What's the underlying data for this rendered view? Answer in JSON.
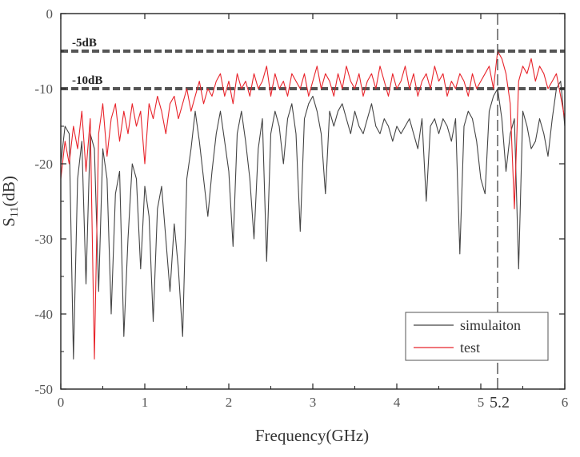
{
  "chart_data": {
    "type": "line",
    "xlabel": "Frequency(GHz)",
    "ylabel_main": "S",
    "ylabel_sub": "11",
    "ylabel_unit": "(dB)",
    "xlim": [
      0,
      6
    ],
    "ylim": [
      -50,
      0
    ],
    "x_ticks": [
      0,
      1,
      2,
      3,
      4,
      5,
      6
    ],
    "x_tick_labels": [
      "0",
      "1",
      "2",
      "3",
      "4",
      "5",
      "6"
    ],
    "y_ticks": [
      0,
      -10,
      -20,
      -30,
      -40,
      -50
    ],
    "y_tick_labels": [
      "0",
      "-10",
      "-20",
      "-30",
      "-40",
      "-50"
    ],
    "reference_lines": [
      {
        "value": -5,
        "label": "-5dB"
      },
      {
        "value": -10,
        "label": "-10dB"
      }
    ],
    "marker": {
      "x": 5.2,
      "label": "5.2"
    },
    "legend_position": "bottom-right",
    "colors": {
      "simulation": "#444444",
      "test": "#e8242b",
      "reference": "#555555",
      "axis": "#222222"
    },
    "series": [
      {
        "name": "simulaiton",
        "x": [
          0,
          0.05,
          0.1,
          0.15,
          0.2,
          0.25,
          0.3,
          0.35,
          0.4,
          0.45,
          0.5,
          0.55,
          0.6,
          0.65,
          0.7,
          0.75,
          0.8,
          0.85,
          0.9,
          0.95,
          1.0,
          1.05,
          1.1,
          1.15,
          1.2,
          1.25,
          1.3,
          1.35,
          1.4,
          1.45,
          1.5,
          1.55,
          1.6,
          1.65,
          1.7,
          1.75,
          1.8,
          1.85,
          1.9,
          1.95,
          2.0,
          2.05,
          2.1,
          2.15,
          2.2,
          2.25,
          2.3,
          2.35,
          2.4,
          2.45,
          2.5,
          2.55,
          2.6,
          2.65,
          2.7,
          2.75,
          2.8,
          2.85,
          2.9,
          2.95,
          3.0,
          3.05,
          3.1,
          3.15,
          3.2,
          3.25,
          3.3,
          3.35,
          3.4,
          3.45,
          3.5,
          3.55,
          3.6,
          3.65,
          3.7,
          3.75,
          3.8,
          3.85,
          3.9,
          3.95,
          4.0,
          4.05,
          4.1,
          4.15,
          4.2,
          4.25,
          4.3,
          4.35,
          4.4,
          4.45,
          4.5,
          4.55,
          4.6,
          4.65,
          4.7,
          4.75,
          4.8,
          4.85,
          4.9,
          4.95,
          5.0,
          5.05,
          5.1,
          5.15,
          5.2,
          5.25,
          5.3,
          5.35,
          5.4,
          5.45,
          5.5,
          5.55,
          5.6,
          5.65,
          5.7,
          5.75,
          5.8,
          5.85,
          5.9,
          5.95,
          6.0
        ],
        "values": [
          -20,
          -15,
          -16,
          -46,
          -22,
          -17,
          -36,
          -16,
          -18,
          -37,
          -18,
          -22,
          -40,
          -24,
          -21,
          -43,
          -30,
          -20,
          -22,
          -34,
          -23,
          -27,
          -41,
          -26,
          -23,
          -30,
          -37,
          -28,
          -34,
          -43,
          -22,
          -18,
          -13,
          -17,
          -22,
          -27,
          -21,
          -16,
          -13,
          -17,
          -21,
          -31,
          -16,
          -13,
          -17,
          -22,
          -30,
          -18,
          -14,
          -33,
          -16,
          -13,
          -15,
          -20,
          -14,
          -12,
          -16,
          -29,
          -14,
          -12,
          -11,
          -13,
          -16,
          -24,
          -13,
          -15,
          -13,
          -12,
          -14,
          -16,
          -13,
          -15,
          -16,
          -14,
          -12,
          -15,
          -16,
          -14,
          -15,
          -17,
          -15,
          -16,
          -15,
          -14,
          -16,
          -18,
          -14,
          -25,
          -15,
          -14,
          -16,
          -14,
          -15,
          -17,
          -14,
          -32,
          -15,
          -13,
          -14,
          -17,
          -22,
          -24,
          -13,
          -11,
          -10,
          -14,
          -21,
          -16,
          -14,
          -34,
          -13,
          -15,
          -18,
          -17,
          -14,
          -16,
          -19,
          -14,
          -10,
          -9,
          -15
        ]
      },
      {
        "name": "test",
        "x": [
          0,
          0.05,
          0.1,
          0.15,
          0.2,
          0.25,
          0.3,
          0.35,
          0.4,
          0.45,
          0.5,
          0.55,
          0.6,
          0.65,
          0.7,
          0.75,
          0.8,
          0.85,
          0.9,
          0.95,
          1.0,
          1.05,
          1.1,
          1.15,
          1.2,
          1.25,
          1.3,
          1.35,
          1.4,
          1.45,
          1.5,
          1.55,
          1.6,
          1.65,
          1.7,
          1.75,
          1.8,
          1.85,
          1.9,
          1.95,
          2.0,
          2.05,
          2.1,
          2.15,
          2.2,
          2.25,
          2.3,
          2.35,
          2.4,
          2.45,
          2.5,
          2.55,
          2.6,
          2.65,
          2.7,
          2.75,
          2.8,
          2.85,
          2.9,
          2.95,
          3.0,
          3.05,
          3.1,
          3.15,
          3.2,
          3.25,
          3.3,
          3.35,
          3.4,
          3.45,
          3.5,
          3.55,
          3.6,
          3.65,
          3.7,
          3.75,
          3.8,
          3.85,
          3.9,
          3.95,
          4.0,
          4.05,
          4.1,
          4.15,
          4.2,
          4.25,
          4.3,
          4.35,
          4.4,
          4.45,
          4.5,
          4.55,
          4.6,
          4.65,
          4.7,
          4.75,
          4.8,
          4.85,
          4.9,
          4.95,
          5.0,
          5.05,
          5.1,
          5.15,
          5.2,
          5.25,
          5.3,
          5.35,
          5.4,
          5.45,
          5.5,
          5.55,
          5.6,
          5.65,
          5.7,
          5.75,
          5.8,
          5.85,
          5.9,
          5.95,
          6.0
        ],
        "values": [
          -22,
          -17,
          -20,
          -15,
          -18,
          -13,
          -21,
          -14,
          -46,
          -16,
          -12,
          -19,
          -14,
          -12,
          -17,
          -13,
          -16,
          -12,
          -15,
          -13,
          -20,
          -12,
          -14,
          -11,
          -13,
          -16,
          -12,
          -11,
          -14,
          -12,
          -10,
          -13,
          -11,
          -9,
          -12,
          -10,
          -11,
          -9,
          -8,
          -11,
          -9,
          -12,
          -8,
          -10,
          -9,
          -11,
          -8,
          -10,
          -9,
          -7,
          -11,
          -8,
          -10,
          -9,
          -11,
          -8,
          -9,
          -10,
          -8,
          -11,
          -9,
          -7,
          -10,
          -8,
          -9,
          -11,
          -8,
          -10,
          -7,
          -9,
          -10,
          -8,
          -11,
          -9,
          -8,
          -10,
          -7,
          -9,
          -11,
          -8,
          -10,
          -9,
          -7,
          -10,
          -8,
          -11,
          -9,
          -8,
          -10,
          -7,
          -9,
          -8,
          -11,
          -9,
          -10,
          -8,
          -9,
          -11,
          -8,
          -10,
          -9,
          -8,
          -7,
          -10,
          -5,
          -6,
          -8,
          -12,
          -26,
          -9,
          -7,
          -8,
          -6,
          -9,
          -7,
          -8,
          -10,
          -9,
          -8,
          -11,
          -14
        ]
      }
    ]
  }
}
